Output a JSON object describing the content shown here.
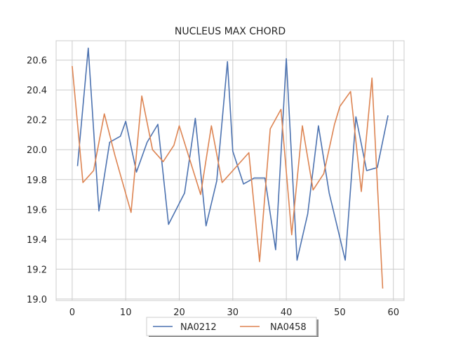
{
  "colors": {
    "background": "#ffffff",
    "grid": "#cccccc",
    "axis_text": "#262626",
    "NA0212": "#4c72b0",
    "NA0458": "#dd8452"
  },
  "chart_data": {
    "type": "line",
    "title": "NUCLEUS MAX CHORD",
    "xlabel": "",
    "ylabel": "",
    "xlim": [
      -3,
      62
    ],
    "ylim": [
      18.99,
      20.73
    ],
    "xticks": [
      0,
      10,
      20,
      30,
      40,
      50,
      60
    ],
    "yticks": [
      19.0,
      19.2,
      19.4,
      19.6,
      19.8,
      20.0,
      20.2,
      20.4,
      20.6
    ],
    "ytick_labels": [
      "19.0",
      "19.2",
      "19.4",
      "19.6",
      "19.8",
      "20.0",
      "20.2",
      "20.4",
      "20.6"
    ],
    "grid": true,
    "legend": "bottom-center",
    "series": [
      {
        "name": "NA0212",
        "color": "#4c72b0",
        "x": [
          1,
          3,
          5,
          7,
          9,
          10,
          12,
          14,
          16,
          18,
          21,
          23,
          25,
          27,
          29,
          30,
          32,
          34,
          36,
          38,
          40,
          42,
          44,
          46,
          48,
          51,
          53,
          55,
          57,
          59
        ],
        "y": [
          19.89,
          20.68,
          19.59,
          20.05,
          20.09,
          20.19,
          19.85,
          20.05,
          20.17,
          19.5,
          19.71,
          20.21,
          19.49,
          19.79,
          20.59,
          19.99,
          19.77,
          19.81,
          19.81,
          19.33,
          20.61,
          19.26,
          19.57,
          20.16,
          19.71,
          19.26,
          20.22,
          19.86,
          19.88,
          20.23
        ]
      },
      {
        "name": "NA0458",
        "color": "#dd8452",
        "x": [
          0,
          2,
          4,
          6,
          8,
          11,
          13,
          15,
          17,
          19,
          20,
          24,
          26,
          28,
          33,
          35,
          37,
          39,
          41,
          43,
          45,
          47,
          49,
          50,
          52,
          54,
          56,
          58
        ],
        "y": [
          20.56,
          19.78,
          19.86,
          20.24,
          19.96,
          19.58,
          20.36,
          20.0,
          19.92,
          20.03,
          20.16,
          19.7,
          20.16,
          19.78,
          19.98,
          19.25,
          20.14,
          20.27,
          19.43,
          20.16,
          19.73,
          19.84,
          20.17,
          20.29,
          20.39,
          19.72,
          20.48,
          19.07
        ]
      }
    ]
  }
}
